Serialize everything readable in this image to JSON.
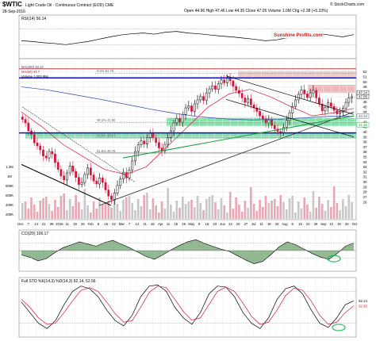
{
  "header": {
    "symbol": "$WTIC",
    "title": "Light Crude Oil - Continuous Contract (EOD) CME",
    "copyright": "© StockCharts.com",
    "date": "28-Sep-2016",
    "ohlc": "Open 44.96  High 47.46  Low 44.35  Close 47.05  Volume 1.0M  Chg +2.38 (+5.33%)"
  },
  "watermark": "Sunshine Profits.com",
  "colors": {
    "up": "#000000",
    "down": "#d4143c",
    "support_zone": "#6fdc9b",
    "resistance_zone": "#e8b3b3",
    "ma50": "#d4143c",
    "ma200": "#2a3ea8",
    "blue_line": "#1010c8",
    "green_line": "#20a040",
    "oscillator_fill": "#3a7f3a",
    "sto_k": "#000000",
    "sto_d": "#d4143c"
  },
  "chart_data": [
    {
      "type": "line",
      "panel": "RSI",
      "label": "RSI(14) 56.14",
      "ylim": [
        0,
        100
      ],
      "levels": [
        30,
        70
      ],
      "values": [
        40,
        38,
        35,
        33,
        30,
        34,
        38,
        44,
        50,
        55,
        58,
        60,
        57,
        62,
        64,
        60,
        58,
        55,
        52,
        50,
        47,
        44,
        40,
        42,
        48,
        53,
        55,
        58,
        54,
        50,
        56
      ]
    },
    {
      "type": "candlestick",
      "panel": "Price",
      "ylim": [
        25,
        54
      ],
      "legend": [
        "MA(200) 43.12",
        "MA(50) 44.7",
        "Volume 1,003,954"
      ],
      "fib_labels": [
        "0.0% 51.75",
        "38.2% 41.90",
        "50.0% 38.83",
        "61.8% 35.78"
      ],
      "y_ticks": [
        52,
        51,
        50,
        49,
        48,
        47,
        46,
        45,
        44,
        43,
        42,
        41,
        40,
        39,
        38,
        37,
        36,
        35,
        34,
        33,
        32,
        31,
        30,
        29,
        28,
        27,
        26
      ],
      "price_labels": [
        "47.05",
        "47.24",
        "43.12",
        "41.36"
      ],
      "volume_ticks": [
        "1.2M",
        "1M",
        "800K",
        "600K",
        "400K",
        "200K"
      ],
      "x_labels": [
        "Dec",
        "7",
        "14",
        "21",
        "28",
        "2016",
        "11",
        "19",
        "25",
        "Feb",
        "8",
        "16",
        "22",
        "Mar",
        "7",
        "14",
        "21",
        "28",
        "Apr",
        "11",
        "18",
        "25",
        "May",
        "9",
        "16",
        "23",
        "Jun",
        "13",
        "20",
        "27",
        "Jul",
        "11",
        "18",
        "25",
        "Aug",
        "8",
        "15",
        "22",
        "29",
        "Sep",
        "12",
        "19",
        "26",
        "Oct"
      ],
      "closes": [
        42.5,
        41.8,
        40.2,
        39.5,
        37.8,
        37.2,
        36.4,
        35.2,
        34.8,
        36.1,
        35.6,
        33.9,
        32.5,
        31.2,
        30.4,
        31.8,
        33.2,
        32.1,
        30.9,
        29.5,
        29.9,
        31.5,
        32.8,
        31.4,
        30.2,
        29.6,
        30.8,
        29.9,
        28.4,
        27.2,
        26.5,
        27.8,
        29.3,
        30.6,
        31.9,
        30.8,
        32.4,
        34.2,
        36.1,
        37.4,
        38.2,
        37.6,
        38.9,
        39.7,
        38.8,
        37.9,
        36.8,
        36.2,
        37.5,
        38.9,
        40.2,
        41.8,
        42.7,
        41.9,
        43.5,
        44.8,
        45.2,
        44.1,
        45.6,
        46.4,
        47.1,
        46.3,
        47.8,
        48.6,
        49.2,
        48.5,
        49.6,
        50.4,
        49.8,
        50.9,
        50.2,
        49.1,
        48.3,
        47.7,
        46.8,
        45.9,
        46.6,
        45.4,
        44.8,
        44.1,
        43.2,
        42.6,
        41.8,
        42.4,
        41.3,
        40.6,
        40.1,
        39.8,
        40.9,
        42.3,
        43.8,
        45.1,
        46.4,
        47.5,
        48.4,
        47.6,
        46.9,
        47.8,
        48.3,
        46.8,
        45.6,
        44.2,
        44.9,
        45.8,
        45.1,
        44.3,
        43.6,
        43.9,
        44.7,
        45.9,
        46.8,
        47.05
      ]
    },
    {
      "type": "line",
      "panel": "CCI",
      "label": "CCI(20) 106.17",
      "ylim": [
        -250,
        250
      ],
      "levels": [
        -100,
        100
      ],
      "values": [
        -60,
        -90,
        -140,
        -110,
        -30,
        40,
        80,
        120,
        90,
        60,
        110,
        140,
        90,
        40,
        -20,
        -80,
        -120,
        -60,
        10,
        70,
        120,
        150,
        100,
        60,
        20,
        -10,
        -70,
        -130,
        -180,
        -150,
        -60,
        50,
        120,
        80,
        20,
        -40,
        -90,
        -120,
        -40,
        60,
        106
      ]
    },
    {
      "type": "line",
      "panel": "Full STO",
      "label": "Full STO %K(14,3) %D(14,3) 62.14, 52.56",
      "ylim": [
        0,
        100
      ],
      "levels": [
        20,
        80
      ],
      "series": [
        {
          "name": "%K(14,3)",
          "values": [
            60,
            40,
            20,
            10,
            25,
            55,
            80,
            90,
            85,
            70,
            45,
            25,
            15,
            35,
            70,
            90,
            92,
            80,
            50,
            30,
            18,
            40,
            75,
            90,
            88,
            70,
            40,
            20,
            10,
            30,
            65,
            85,
            90,
            75,
            45,
            20,
            12,
            30,
            55,
            62
          ]
        },
        {
          "name": "%D(14,3)",
          "values": [
            65,
            50,
            30,
            18,
            20,
            40,
            62,
            82,
            87,
            80,
            60,
            38,
            22,
            25,
            50,
            78,
            90,
            87,
            65,
            42,
            26,
            30,
            55,
            80,
            88,
            80,
            58,
            33,
            18,
            22,
            45,
            72,
            86,
            82,
            62,
            35,
            18,
            22,
            40,
            53
          ]
        }
      ],
      "right_labels": [
        "62.14",
        "52.56"
      ]
    }
  ]
}
